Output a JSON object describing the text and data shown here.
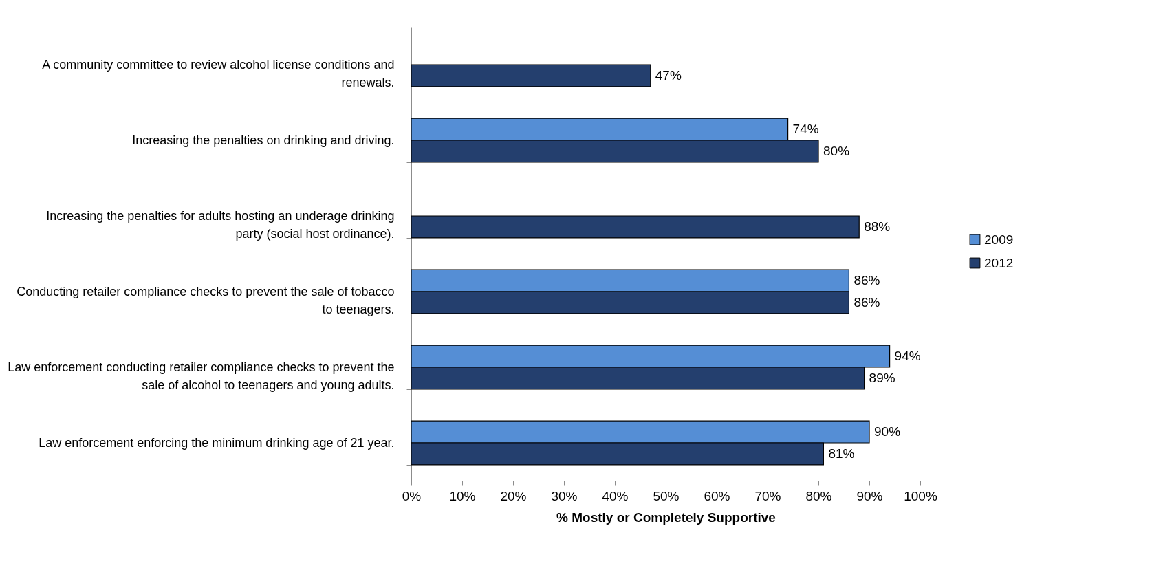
{
  "chart_data": {
    "type": "bar",
    "orientation": "horizontal",
    "categories": [
      "A community committee to review alcohol license conditions and renewals.",
      "Increasing the penalties on drinking and driving.",
      "Increasing the penalties for adults hosting an underage drinking party (social host ordinance).",
      "Conducting retailer compliance checks to prevent the sale of tobacco to teenagers.",
      "Law enforcement conducting retailer compliance checks to prevent the sale of alcohol to teenagers and young adults.",
      "Law enforcement enforcing the minimum drinking age of 21 year."
    ],
    "series": [
      {
        "name": "2009",
        "color": "#558ed5",
        "values": [
          null,
          74,
          null,
          86,
          94,
          90
        ],
        "value_labels": [
          null,
          "74%",
          null,
          "86%",
          "94%",
          "90%"
        ]
      },
      {
        "name": "2012",
        "color": "#243f6e",
        "values": [
          47,
          80,
          88,
          86,
          89,
          81
        ],
        "value_labels": [
          "47%",
          "80%",
          "88%",
          "86%",
          "89%",
          "81%"
        ]
      }
    ],
    "xlabel": "% Mostly or Completely Supportive",
    "xlim": [
      0,
      100
    ],
    "xticks": [
      {
        "value": 0,
        "label": "0%"
      },
      {
        "value": 10,
        "label": "10%"
      },
      {
        "value": 20,
        "label": "20%"
      },
      {
        "value": 30,
        "label": "30%"
      },
      {
        "value": 40,
        "label": "40%"
      },
      {
        "value": 50,
        "label": "50%"
      },
      {
        "value": 60,
        "label": "60%"
      },
      {
        "value": 70,
        "label": "70%"
      },
      {
        "value": 80,
        "label": "80%"
      },
      {
        "value": 90,
        "label": "90%"
      },
      {
        "value": 100,
        "label": "100%"
      }
    ],
    "legend": "right"
  }
}
